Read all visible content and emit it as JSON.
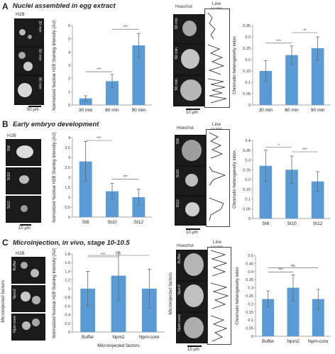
{
  "panels": [
    {
      "letter": "A",
      "title": "Nuclei assembled in egg extract",
      "left_stain": "H2B",
      "left_labels": [
        "30 min",
        "60 min",
        "90 min"
      ],
      "left_scale": "50 μm",
      "right_stain": "Hoechst",
      "line_scans_label": "Line scans",
      "right_labels": [
        "30 min",
        "60 min",
        "90 min"
      ],
      "right_scale": "10 μm"
    },
    {
      "letter": "B",
      "title": "Early embryo development",
      "left_stain": "H2B",
      "left_labels": [
        "St8",
        "St10",
        "St12"
      ],
      "left_scale": "10 μm",
      "right_stain": "Hoechst",
      "line_scans_label": "Line scans",
      "right_labels": [
        "St8",
        "St10",
        "St12"
      ],
      "right_scale": "10 μm"
    },
    {
      "letter": "C",
      "title": "Microinjection, in vivo, stage 10-10.5",
      "left_stain": "H2B",
      "left_labels": [
        "Buffer",
        "Npm2",
        "Npm-core"
      ],
      "left_axis_label": "Microinjected factors",
      "right_stain": "Hoechst",
      "line_scans_label": "Line scans",
      "right_labels": [
        "Buffer",
        "Npm2",
        "Npm-core"
      ],
      "right_axis_label": "Microinjected factors",
      "right_scale": "10 μm"
    }
  ],
  "chart_data": [
    {
      "type": "bar",
      "ylabel": "Normalized Nuclear H2B Staining Intensity (AU)",
      "categories": [
        "30 min",
        "60 min",
        "90 min"
      ],
      "values": [
        0.5,
        1.8,
        4.5
      ],
      "errors": [
        0.2,
        0.5,
        0.9
      ],
      "ylim": [
        0,
        6
      ],
      "yticks": [
        0,
        1,
        2,
        3,
        4,
        5,
        6
      ],
      "significance": [
        {
          "from": 0,
          "to": 1,
          "label": "***"
        },
        {
          "from": 1,
          "to": 2,
          "label": "***"
        }
      ]
    },
    {
      "type": "bar",
      "ylabel": "Chromatin heterogeneity index",
      "categories": [
        "30 min",
        "60 min",
        "90 min"
      ],
      "values": [
        0.15,
        0.22,
        0.25
      ],
      "errors": [
        0.045,
        0.04,
        0.05
      ],
      "ylim": [
        0,
        0.35
      ],
      "yticks": [
        0,
        0.05,
        0.1,
        0.15,
        0.2,
        0.25,
        0.3,
        0.35
      ],
      "significance": [
        {
          "from": 0,
          "to": 1,
          "label": "***"
        },
        {
          "from": 1,
          "to": 2,
          "label": "**"
        }
      ]
    },
    {
      "type": "bar",
      "ylabel": "Normalized Nuclear H2B Staining Intensity (AU)",
      "categories": [
        "St8",
        "St10",
        "St12"
      ],
      "values": [
        2.8,
        1.3,
        1.0
      ],
      "errors": [
        1.0,
        0.4,
        0.4
      ],
      "ylim": [
        0,
        4
      ],
      "yticks": [
        0,
        0.5,
        1,
        1.5,
        2,
        2.5,
        3,
        3.5,
        4
      ],
      "significance": [
        {
          "from": 0,
          "to": 1,
          "label": "***"
        },
        {
          "from": 1,
          "to": 2,
          "label": "***"
        }
      ]
    },
    {
      "type": "bar",
      "ylabel": "Chromatin heterogeneity index",
      "categories": [
        "St8",
        "St10",
        "St12"
      ],
      "values": [
        0.27,
        0.25,
        0.19
      ],
      "errors": [
        0.08,
        0.07,
        0.05
      ],
      "ylim": [
        0,
        0.4
      ],
      "yticks": [
        0,
        0.05,
        0.1,
        0.15,
        0.2,
        0.25,
        0.3,
        0.35,
        0.4
      ],
      "significance": [
        {
          "from": 0,
          "to": 1,
          "label": "*"
        },
        {
          "from": 1,
          "to": 2,
          "label": "***"
        }
      ]
    },
    {
      "type": "bar",
      "ylabel": "Normalized Nuclear H2B Staining Intensity (AU)",
      "xlabel": "Microinjected factors",
      "categories": [
        "Buffer",
        "Npm2",
        "Npm-core"
      ],
      "values": [
        1.0,
        1.3,
        1.0
      ],
      "errors": [
        0.4,
        0.55,
        0.45
      ],
      "ylim": [
        0,
        1.8
      ],
      "yticks": [
        0,
        0.2,
        0.4,
        0.6,
        0.8,
        1,
        1.2,
        1.4,
        1.6,
        1.8
      ],
      "significance": [
        {
          "from": 0,
          "to": 1,
          "label": "***"
        },
        {
          "from": 0,
          "to": 2,
          "label": "n.s."
        }
      ]
    },
    {
      "type": "bar",
      "ylabel": "Chromatin heterogeneity index",
      "categories": [
        "Buffer",
        "Npm2",
        "Npm-core"
      ],
      "values": [
        0.23,
        0.3,
        0.23
      ],
      "errors": [
        0.05,
        0.08,
        0.06
      ],
      "ylim": [
        0,
        0.5
      ],
      "yticks": [
        0,
        0.05,
        0.1,
        0.15,
        0.2,
        0.25,
        0.3,
        0.35,
        0.4,
        0.45,
        0.5
      ],
      "significance": [
        {
          "from": 0,
          "to": 1,
          "label": "***"
        },
        {
          "from": 0,
          "to": 2,
          "label": "ns"
        }
      ]
    }
  ],
  "colors": {
    "bar": "#5b9bd5",
    "error": "#666666",
    "micro_bg": "#1b1b1b",
    "nucleus": "#cfcfcf"
  }
}
